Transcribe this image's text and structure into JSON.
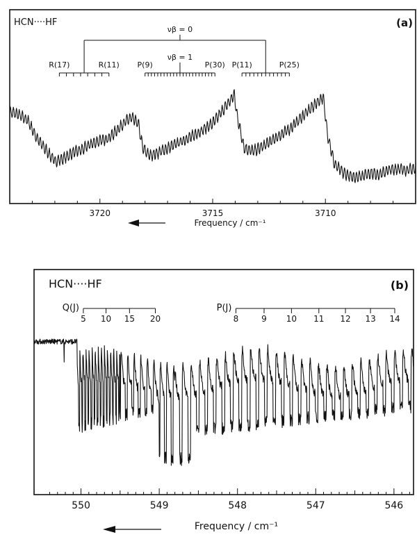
{
  "chart_data": [
    {
      "type": "line",
      "panel_label": "(a)",
      "title": "HCN····HF",
      "xlabel": "Frequency / cm⁻¹",
      "x_direction": "decreasing",
      "xlim": [
        3724,
        3706
      ],
      "x_ticks": [
        3720,
        3715,
        3710
      ],
      "x_ticklabels": [
        "3720",
        "3715",
        "3710"
      ],
      "grid": false,
      "annotations": {
        "vb0_label": "νβ = 0",
        "vb1_label": "νβ = 1",
        "branches": [
          {
            "label_left": "R(17)",
            "label_right": "R(11)",
            "x_start": 3721.8,
            "x_end": 3719.6
          },
          {
            "label_left": "P(9)",
            "label_right": "P(30)",
            "x_start": 3718.0,
            "x_end": 3714.9
          },
          {
            "label_left": "P(11)",
            "label_right": "P(25)",
            "x_start": 3713.7,
            "x_end": 3711.6
          }
        ]
      },
      "series": [
        {
          "x": [
            3724.0,
            3723.6,
            3723.2,
            3722.8,
            3722.4,
            3722.0,
            3721.6,
            3721.2,
            3720.8,
            3720.4,
            3720.0,
            3719.6,
            3719.2,
            3718.9,
            3718.6,
            3718.3,
            3718.1,
            3717.8,
            3717.4,
            3717.0,
            3716.6,
            3716.2,
            3715.8,
            3715.4,
            3715.0,
            3714.6,
            3714.2,
            3714.05,
            3713.9,
            3713.6,
            3713.2,
            3712.8,
            3712.4,
            3712.0,
            3711.6,
            3711.2,
            3710.8,
            3710.4,
            3710.1,
            3709.9,
            3709.6,
            3709.2,
            3708.8,
            3708.4,
            3708.0,
            3707.6,
            3707.2,
            3706.8,
            3706.4,
            3706.0
          ],
          "y": [
            0.52,
            0.5,
            0.46,
            0.34,
            0.26,
            0.18,
            0.2,
            0.24,
            0.26,
            0.3,
            0.32,
            0.34,
            0.4,
            0.45,
            0.48,
            0.44,
            0.27,
            0.22,
            0.24,
            0.27,
            0.3,
            0.33,
            0.36,
            0.4,
            0.44,
            0.52,
            0.6,
            0.64,
            0.48,
            0.27,
            0.25,
            0.28,
            0.32,
            0.36,
            0.4,
            0.46,
            0.52,
            0.58,
            0.62,
            0.36,
            0.16,
            0.1,
            0.07,
            0.08,
            0.1,
            0.09,
            0.12,
            0.13,
            0.12,
            0.13
          ]
        }
      ]
    },
    {
      "type": "line",
      "panel_label": "(b)",
      "title": "HCN····HF",
      "xlabel": "Frequency / cm⁻¹",
      "x_direction": "decreasing",
      "xlim": [
        550.6,
        545.75
      ],
      "x_ticks": [
        550,
        549,
        548,
        547,
        546
      ],
      "x_ticklabels": [
        "550",
        "549",
        "548",
        "547",
        "546"
      ],
      "grid": false,
      "annotations": {
        "q_branch": {
          "title": "Q(J)",
          "labels": [
            "5",
            "10",
            "15",
            "20"
          ],
          "x_positions": [
            549.97,
            549.68,
            549.38,
            549.05
          ]
        },
        "p_branch": {
          "title": "P(J)",
          "labels": [
            "8",
            "9",
            "10",
            "11",
            "12",
            "13",
            "14"
          ],
          "x_positions": [
            548.02,
            547.66,
            547.31,
            546.96,
            546.62,
            546.3,
            545.99
          ]
        }
      },
      "series": [
        {
          "x": [
            550.6,
            550.45,
            550.3,
            550.2,
            550.1,
            550.05,
            550.0,
            549.9,
            549.8,
            549.7,
            549.6,
            549.5,
            549.4,
            549.3,
            549.2,
            549.1,
            549.0,
            548.9,
            548.8,
            548.7,
            548.6,
            548.5,
            548.4,
            548.3,
            548.2,
            548.1,
            548.0,
            547.9,
            547.8,
            547.7,
            547.6,
            547.5,
            547.4,
            547.3,
            547.2,
            547.1,
            547.0,
            546.9,
            546.8,
            546.7,
            546.6,
            546.5,
            546.4,
            546.3,
            546.2,
            546.1,
            546.0,
            545.9,
            545.8
          ],
          "y": [
            0.84,
            0.85,
            0.83,
            0.84,
            0.82,
            0.5,
            0.55,
            0.4,
            0.65,
            0.35,
            0.7,
            0.3,
            0.74,
            0.28,
            0.76,
            0.3,
            0.72,
            0.35,
            0.5,
            0.15,
            0.3,
            0.45,
            0.62,
            0.25,
            0.7,
            0.3,
            0.72,
            0.35,
            0.74,
            0.3,
            0.76,
            0.35,
            0.74,
            0.32,
            0.75,
            0.36,
            0.72,
            0.4,
            0.74,
            0.38,
            0.75,
            0.4,
            0.72,
            0.42,
            0.74,
            0.45,
            0.8,
            0.5,
            0.7
          ]
        }
      ]
    }
  ]
}
